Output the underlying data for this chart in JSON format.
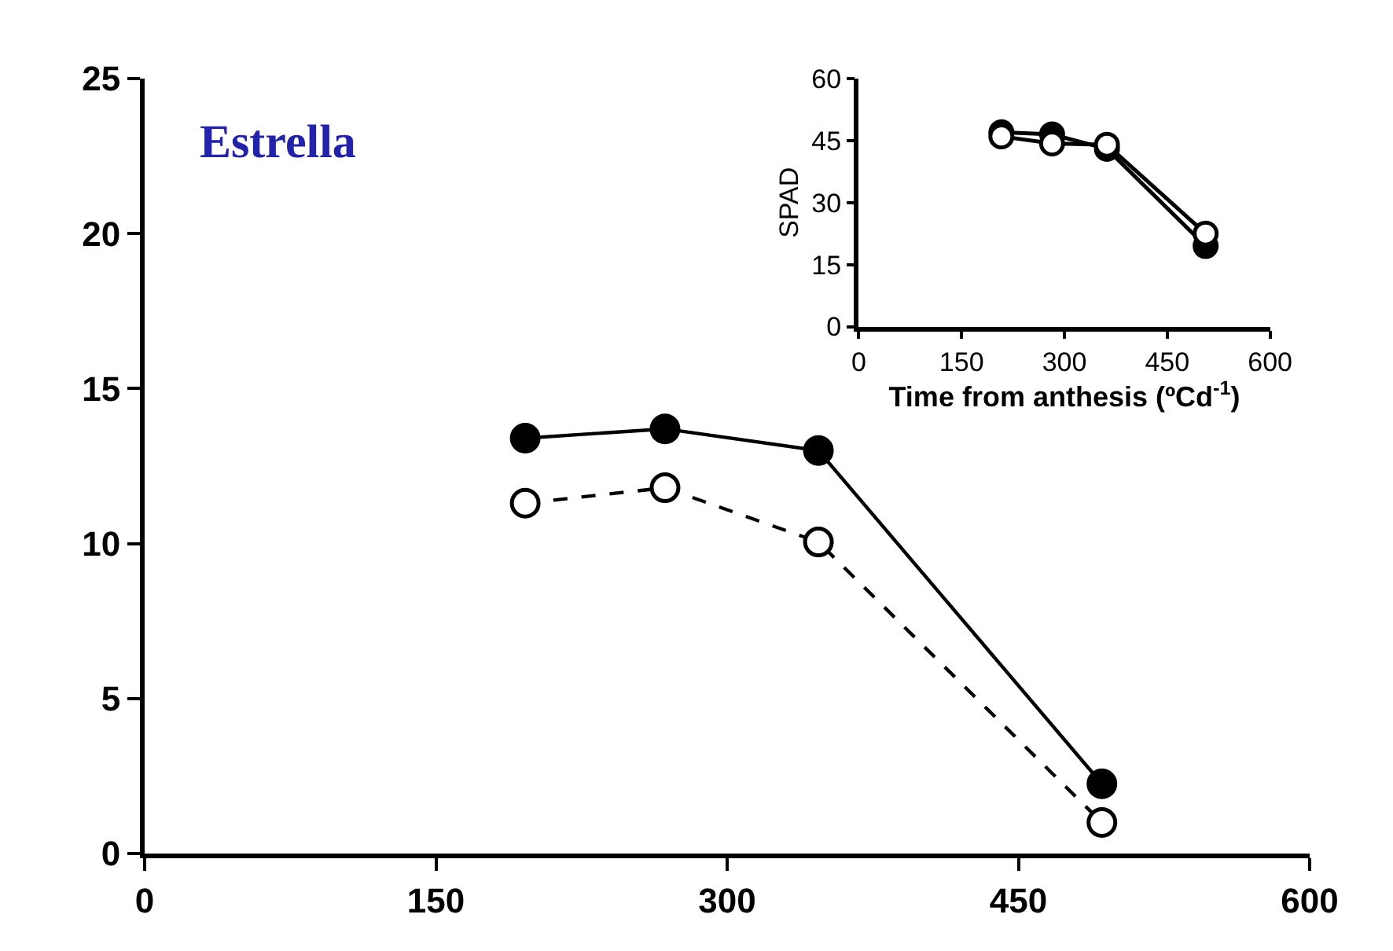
{
  "chart_data": [
    {
      "type": "line",
      "x": [
        196,
        268,
        347,
        493
      ],
      "xlim": [
        0,
        600
      ],
      "xticks": [
        0,
        150,
        300,
        450,
        600
      ],
      "ylim": [
        0,
        25
      ],
      "yticks": [
        0,
        5,
        10,
        15,
        20,
        25
      ],
      "annotations": [
        "Estrella"
      ],
      "series": [
        {
          "color": "#000000",
          "values": [
            13.4,
            13.7,
            13.0,
            2.25
          ],
          "marker": "circle",
          "line_style": "solid"
        },
        {
          "color": "#000000",
          "values": [
            11.3,
            11.8,
            10.05,
            1.0
          ],
          "marker": "circle-open",
          "line_style": "dashed"
        }
      ]
    },
    {
      "type": "line",
      "x": [
        208,
        282,
        362,
        506
      ],
      "xlim": [
        0,
        600
      ],
      "xticks": [
        0,
        150,
        300,
        450,
        600
      ],
      "ylim": [
        0,
        60
      ],
      "yticks": [
        0,
        15,
        30,
        45,
        60
      ],
      "xlabel": "Time from anthesis (ºCd$^{-1}$)",
      "ylabel": "SPAD",
      "series": [
        {
          "color": "#000000",
          "values": [
            47,
            46.5,
            43,
            19.5
          ],
          "marker": "circle",
          "line_style": "solid"
        },
        {
          "color": "#000000",
          "values": [
            46,
            44.3,
            44,
            22.5
          ],
          "marker": "circle-open",
          "line_style": "solid"
        }
      ]
    }
  ]
}
